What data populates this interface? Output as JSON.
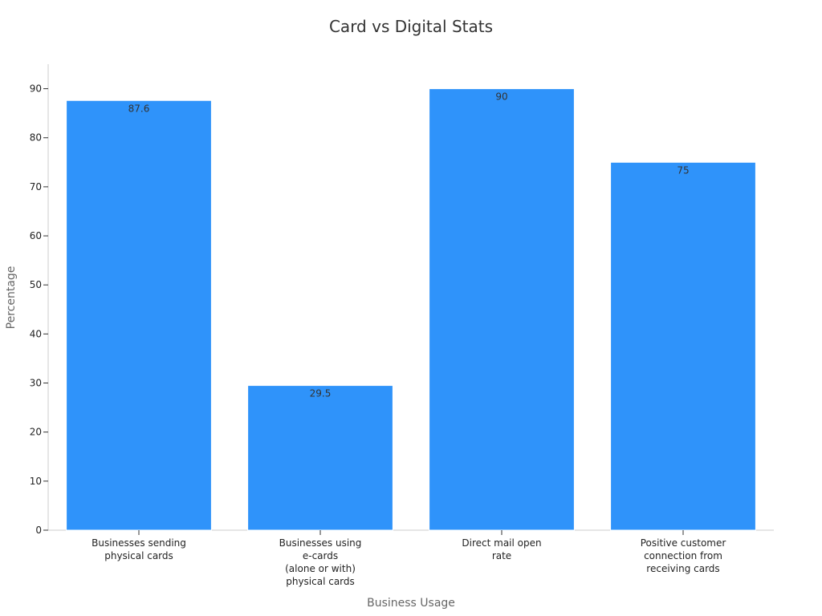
{
  "chart_data": {
    "type": "bar",
    "title": "Card vs Digital Stats",
    "xlabel": "Business Usage",
    "ylabel": "Percentage",
    "categories": [
      [
        "Businesses sending",
        "physical cards"
      ],
      [
        "Businesses using",
        "e-cards",
        "(alone or with)",
        "physical cards"
      ],
      [
        "Direct mail open",
        "rate"
      ],
      [
        "Positive customer",
        "connection from",
        "receiving cards"
      ]
    ],
    "values": [
      87.6,
      29.5,
      90,
      75
    ],
    "data_labels": [
      "87.6",
      "29.5",
      "90",
      "75"
    ],
    "ylim": [
      0,
      95
    ],
    "yticks": [
      0,
      10,
      20,
      30,
      40,
      50,
      60,
      70,
      80,
      90
    ],
    "bar_color": "#2f93fa",
    "grid": false,
    "legend": "none"
  }
}
